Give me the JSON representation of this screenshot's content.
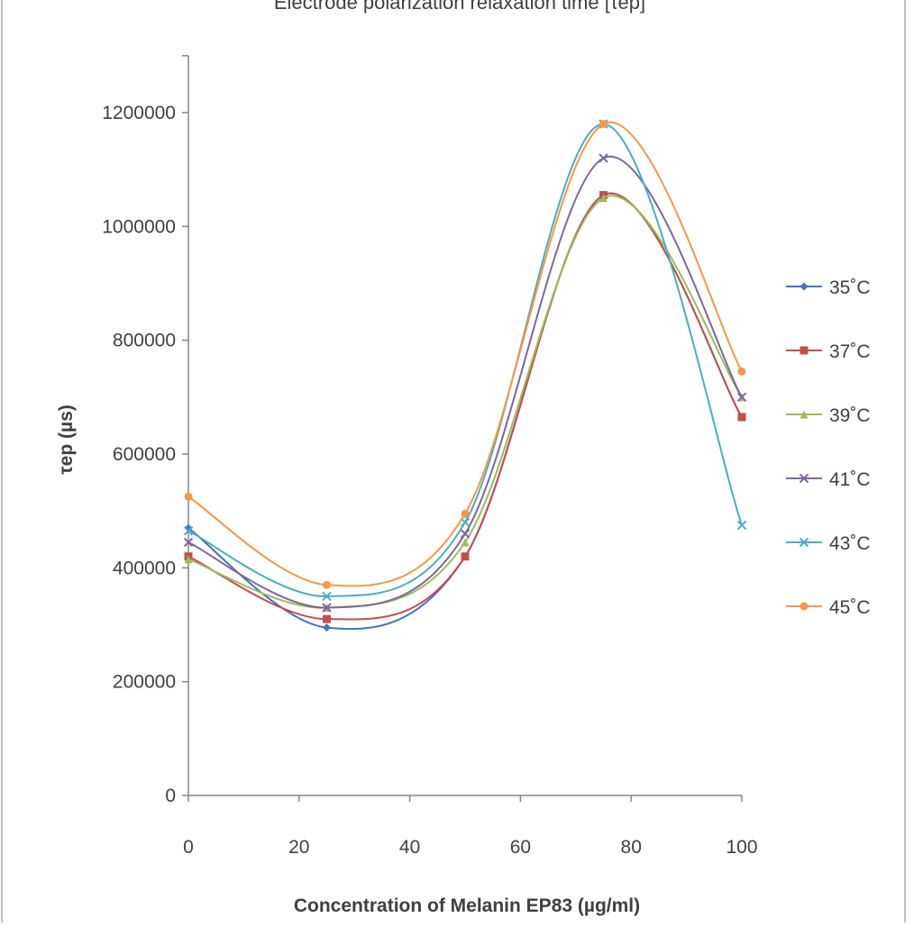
{
  "chart_data": {
    "type": "line",
    "title": "Electrode polarization relaxation time [τep]",
    "xlabel": "Concentration of Melanin EP83 (µg/ml)",
    "ylabel": "τep (µs)",
    "xlim": [
      0,
      100
    ],
    "ylim": [
      0,
      1300000
    ],
    "x_ticks": [
      0,
      20,
      40,
      60,
      80,
      100
    ],
    "x_tick_labels": [
      "0",
      "20",
      "40",
      "60",
      "80",
      "100"
    ],
    "y_ticks": [
      0,
      200000,
      400000,
      600000,
      800000,
      1000000,
      1200000
    ],
    "y_tick_labels": [
      "0",
      "200000",
      "400000",
      "600000",
      "800000",
      "1000000",
      "1200000"
    ],
    "grid": false,
    "legend_position": "right",
    "x": [
      0,
      25,
      50,
      75,
      100
    ],
    "series": [
      {
        "name": "35˚C",
        "color": "#4472c4",
        "marker": "diamond",
        "values": [
          470000,
          295000,
          420000,
          1055000,
          665000
        ]
      },
      {
        "name": "37˚C",
        "color": "#c0504d",
        "marker": "square",
        "values": [
          420000,
          310000,
          420000,
          1055000,
          665000
        ]
      },
      {
        "name": "39˚C",
        "color": "#9bbb59",
        "marker": "triangle",
        "values": [
          415000,
          330000,
          445000,
          1050000,
          700000
        ]
      },
      {
        "name": "41˚C",
        "color": "#8064a2",
        "marker": "x",
        "values": [
          445000,
          330000,
          460000,
          1120000,
          700000
        ]
      },
      {
        "name": "43˚C",
        "color": "#4bacc6",
        "marker": "x",
        "values": [
          465000,
          350000,
          480000,
          1180000,
          475000
        ]
      },
      {
        "name": "45˚C",
        "color": "#f79646",
        "marker": "circle",
        "values": [
          525000,
          370000,
          495000,
          1180000,
          745000
        ]
      }
    ]
  }
}
